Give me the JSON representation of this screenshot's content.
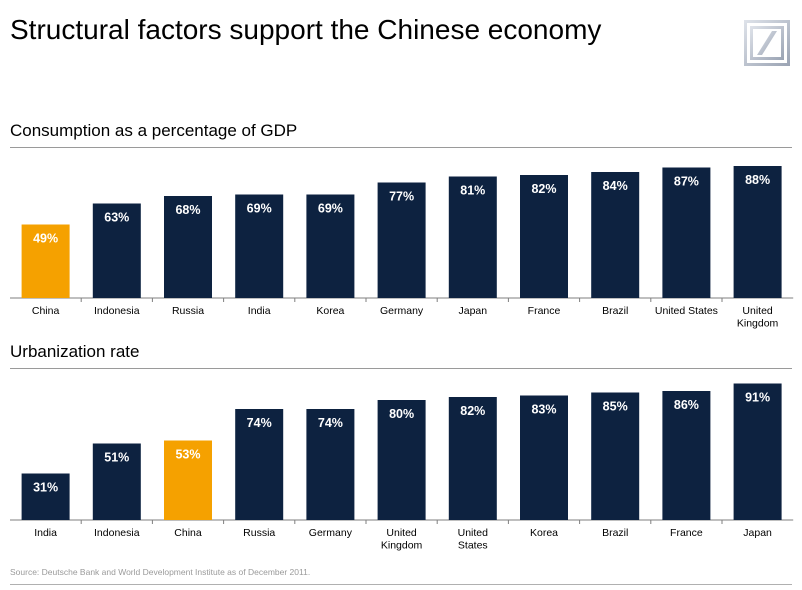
{
  "header": {
    "title": "Structural factors support the Chinese economy",
    "logo_icon": "deutsche-bank-logo-icon"
  },
  "colors": {
    "bar": "#0d2240",
    "highlight": "#f5a100",
    "label_light": "#ffffff",
    "label_dark": "#ffffff"
  },
  "chart_data": [
    {
      "type": "bar",
      "title": "Consumption as a percentage of GDP",
      "categories": [
        "China",
        "Indonesia",
        "Russia",
        "India",
        "Korea",
        "Germany",
        "Japan",
        "France",
        "Brazil",
        "United States",
        "United Kingdom"
      ],
      "category_lines": [
        [
          "China"
        ],
        [
          "Indonesia"
        ],
        [
          "Russia"
        ],
        [
          "India"
        ],
        [
          "Korea"
        ],
        [
          "Germany"
        ],
        [
          "Japan"
        ],
        [
          "France"
        ],
        [
          "Brazil"
        ],
        [
          "United States"
        ],
        [
          "United",
          "Kingdom"
        ]
      ],
      "values": [
        49,
        63,
        68,
        69,
        69,
        77,
        81,
        82,
        84,
        87,
        88
      ],
      "value_labels": [
        "49%",
        "63%",
        "68%",
        "69%",
        "69%",
        "77%",
        "81%",
        "82%",
        "84%",
        "87%",
        "88%"
      ],
      "highlight": "China",
      "ylim": [
        0,
        100
      ],
      "grid": false
    },
    {
      "type": "bar",
      "title": "Urbanization rate",
      "categories": [
        "India",
        "Indonesia",
        "China",
        "Russia",
        "Germany",
        "United Kingdom",
        "United States",
        "Korea",
        "Brazil",
        "France",
        "Japan"
      ],
      "category_lines": [
        [
          "India"
        ],
        [
          "Indonesia"
        ],
        [
          "China"
        ],
        [
          "Russia"
        ],
        [
          "Germany"
        ],
        [
          "United",
          "Kingdom"
        ],
        [
          "United",
          "States"
        ],
        [
          "Korea"
        ],
        [
          "Brazil"
        ],
        [
          "France"
        ],
        [
          "Japan"
        ]
      ],
      "values": [
        31,
        51,
        53,
        74,
        74,
        80,
        82,
        83,
        85,
        86,
        91
      ],
      "value_labels": [
        "31%",
        "51%",
        "53%",
        "74%",
        "74%",
        "80%",
        "82%",
        "83%",
        "85%",
        "86%",
        "91%"
      ],
      "highlight": "China",
      "ylim": [
        0,
        100
      ],
      "grid": false
    }
  ],
  "footer": {
    "source": "Source: Deutsche Bank and World Development Institute as of December 2011."
  }
}
